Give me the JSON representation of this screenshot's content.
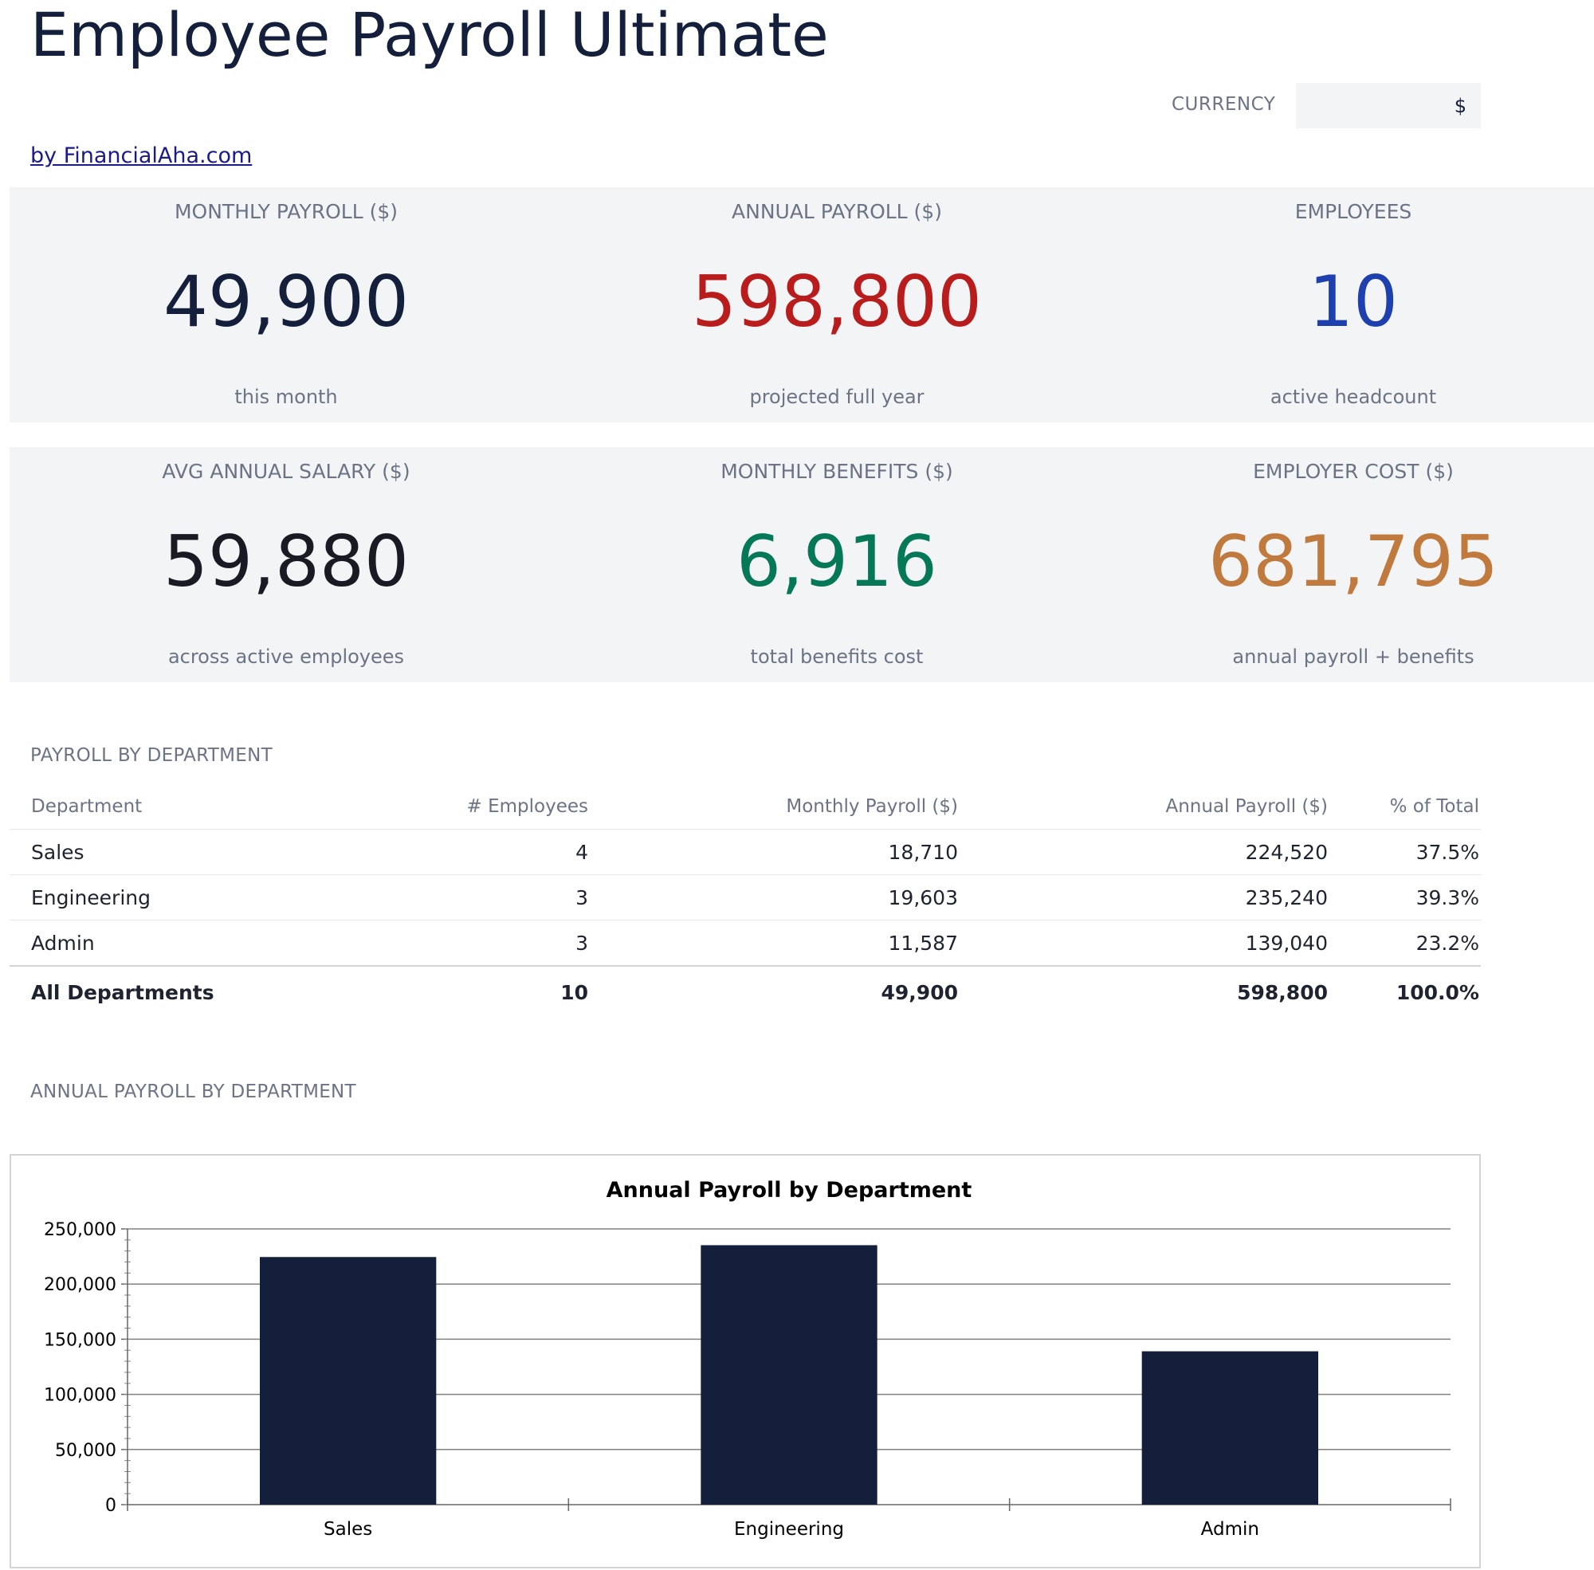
{
  "app": {
    "title": "Employee Payroll Ultimate",
    "byline": "by FinancialAha.com",
    "currency_label": "CURRENCY",
    "currency_value": "$"
  },
  "kpis_row1": [
    {
      "label": "MONTHLY PAYROLL ($)",
      "value": "49,900",
      "sub": "this month",
      "color": "#141f3b"
    },
    {
      "label": "ANNUAL PAYROLL ($)",
      "value": "598,800",
      "sub": "projected full year",
      "color": "#b91c1c"
    },
    {
      "label": "EMPLOYEES",
      "value": "10",
      "sub": "active headcount",
      "color": "#1e40af"
    }
  ],
  "kpis_row2": [
    {
      "label": "AVG ANNUAL SALARY ($)",
      "value": "59,880",
      "sub": "across active employees",
      "color": "#1a1a24"
    },
    {
      "label": "MONTHLY BENEFITS ($)",
      "value": "6,916",
      "sub": "total benefits cost",
      "color": "#047857"
    },
    {
      "label": "EMPLOYER COST ($)",
      "value": "681,795",
      "sub": "annual payroll + benefits",
      "color": "#c07a3e"
    }
  ],
  "dept_section": {
    "label": "PAYROLL BY DEPARTMENT",
    "headers": [
      "Department",
      "# Employees",
      "Monthly Payroll ($)",
      "Annual Payroll ($)",
      "% of Total"
    ],
    "rows": [
      [
        "Sales",
        "4",
        "18,710",
        "224,520",
        "37.5%"
      ],
      [
        "Engineering",
        "3",
        "19,603",
        "235,240",
        "39.3%"
      ],
      [
        "Admin",
        "3",
        "11,587",
        "139,040",
        "23.2%"
      ]
    ],
    "total": [
      "All Departments",
      "10",
      "49,900",
      "598,800",
      "100.0%"
    ]
  },
  "chart_section": {
    "label": "ANNUAL PAYROLL BY DEPARTMENT"
  },
  "chart_data": {
    "type": "bar",
    "title": "Annual Payroll by Department",
    "categories": [
      "Sales",
      "Engineering",
      "Admin"
    ],
    "values": [
      224520,
      235240,
      139040
    ],
    "ylim": [
      0,
      250000
    ],
    "yticks": [
      0,
      50000,
      100000,
      150000,
      200000,
      250000
    ],
    "ytick_labels": [
      "0",
      "50,000",
      "100,000",
      "150,000",
      "200,000",
      "250,000"
    ],
    "bar_color": "#141f3b",
    "grid": true,
    "xlabel": "",
    "ylabel": ""
  }
}
